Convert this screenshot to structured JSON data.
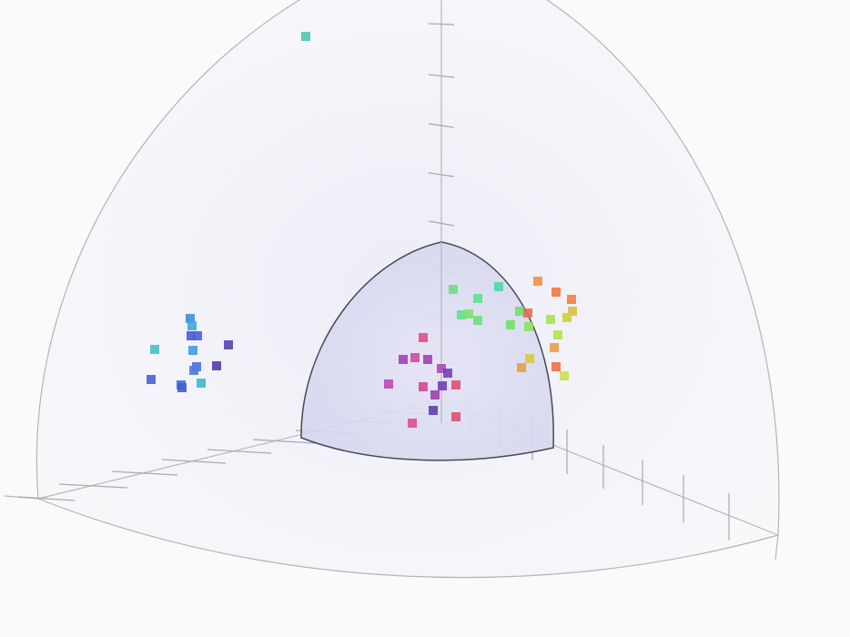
{
  "chart_data": {
    "type": "scatter",
    "projection": "3d-octant",
    "grid": false,
    "legend": "none",
    "colors": {
      "outer_shell_fill": "#f4f4fa",
      "outer_shell_stroke": "#b4b4b8",
      "inner_shell_fill": "#dcdcf2",
      "inner_shell_stroke": "#4a4a58",
      "axis": "#b8b8b8"
    },
    "points": [
      {
        "color": "#4fc8b4"
      },
      {
        "color": "#3f8fdc"
      },
      {
        "color": "#3fa8dc"
      },
      {
        "color": "#4a5ad8"
      },
      {
        "color": "#4a62d8"
      },
      {
        "color": "#5a40b8"
      },
      {
        "color": "#45c0c8"
      },
      {
        "color": "#3f9fdc"
      },
      {
        "color": "#4a70d8"
      },
      {
        "color": "#4a80dc"
      },
      {
        "color": "#5a3aa8"
      },
      {
        "color": "#4a60d0"
      },
      {
        "color": "#40b8c8"
      },
      {
        "color": "#3f70d8"
      },
      {
        "color": "#3f60d0"
      },
      {
        "color": "#6ee07a"
      },
      {
        "color": "#5fe08f"
      },
      {
        "color": "#4fd8a8"
      },
      {
        "color": "#5fdf90"
      },
      {
        "color": "#7ee070"
      },
      {
        "color": "#6ee07a"
      },
      {
        "color": "#72e06a"
      },
      {
        "color": "#72e068"
      },
      {
        "color": "#8de060"
      },
      {
        "color": "#e86a50"
      },
      {
        "color": "#f09040"
      },
      {
        "color": "#f07a40"
      },
      {
        "color": "#f08040"
      },
      {
        "color": "#d8c040"
      },
      {
        "color": "#d0d040"
      },
      {
        "color": "#a8e050"
      },
      {
        "color": "#b8e050"
      },
      {
        "color": "#e8a040"
      },
      {
        "color": "#d8c840"
      },
      {
        "color": "#e8a040"
      },
      {
        "color": "#f07040"
      },
      {
        "color": "#c8e050"
      },
      {
        "color": "#e0508a"
      },
      {
        "color": "#a040c0"
      },
      {
        "color": "#d04aa0"
      },
      {
        "color": "#a040b8"
      },
      {
        "color": "#b048b0"
      },
      {
        "color": "#7040c0"
      },
      {
        "color": "#c048b0"
      },
      {
        "color": "#d04a90"
      },
      {
        "color": "#7040b8"
      },
      {
        "color": "#e05070"
      },
      {
        "color": "#a040b0"
      },
      {
        "color": "#6040b0"
      },
      {
        "color": "#e05070"
      },
      {
        "color": "#e0508a"
      }
    ]
  }
}
